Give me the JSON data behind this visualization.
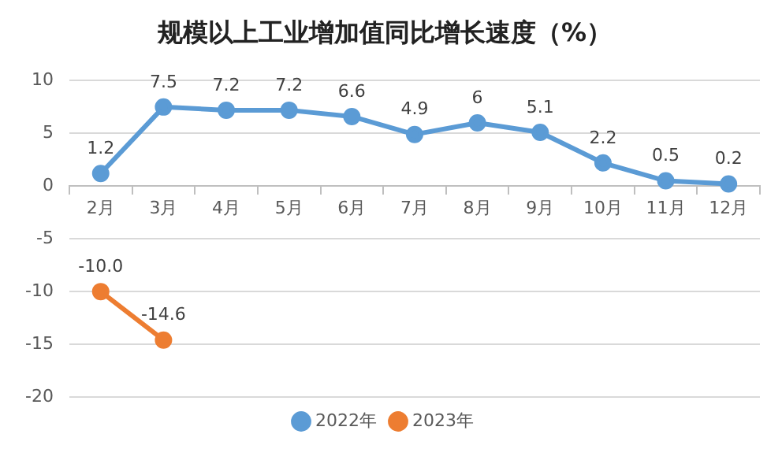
{
  "chart_data": {
    "type": "line",
    "title": "规模以上工业增加值同比增长速度（%）",
    "categories": [
      "2月",
      "3月",
      "4月",
      "5月",
      "6月",
      "7月",
      "8月",
      "9月",
      "10月",
      "11月",
      "12月"
    ],
    "series": [
      {
        "name": "2022年",
        "color": "#5b9bd5",
        "values": [
          1.2,
          7.5,
          7.2,
          7.2,
          6.6,
          4.9,
          6,
          5.1,
          2.2,
          0.5,
          0.2
        ],
        "value_labels": [
          "1.2",
          "7.5",
          "7.2",
          "7.2",
          "6.6",
          "4.9",
          "6",
          "5.1",
          "2.2",
          "0.5",
          "0.2"
        ]
      },
      {
        "name": "2023年",
        "color": "#ed7d31",
        "values": [
          -10.0,
          -14.6,
          null,
          null,
          null,
          null,
          null,
          null,
          null,
          null,
          null
        ],
        "value_labels": [
          "-10.0",
          "-14.6",
          null,
          null,
          null,
          null,
          null,
          null,
          null,
          null,
          null
        ]
      }
    ],
    "ylim": [
      -20,
      10
    ],
    "yticks": [
      -20,
      -15,
      -10,
      -5,
      0,
      5,
      10
    ],
    "grid": "y",
    "legend": "bottom",
    "marker": "circle",
    "line_style": "solid"
  }
}
